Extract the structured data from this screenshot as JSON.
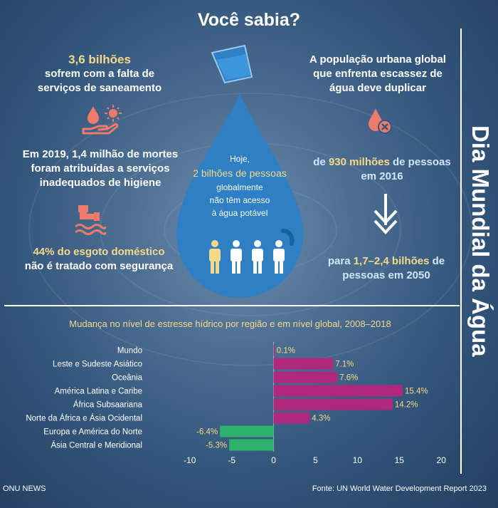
{
  "header": {
    "title": "Você sabia?"
  },
  "side_title": "Dia Mundial da Água",
  "left_facts": {
    "sanitation": {
      "number": "3,6 bilhões",
      "line1": "sofrem com a falta de",
      "line2": "serviços de saneamento"
    },
    "hygiene": {
      "line1": "Em 2019, 1,4 milhão de mortes",
      "line2": "foram atribuídas a serviços",
      "line3": "inadequados de higiene"
    },
    "sewage": {
      "highlight": "44% do esgoto doméstico",
      "line2": "não é tratado com segurança"
    }
  },
  "drop": {
    "line1": "Hoje,",
    "line2": "2 bilhões de pessoas",
    "line3": "globalmente",
    "line4": "não têm acesso",
    "line5": "à água potável"
  },
  "right_facts": {
    "intro": {
      "line1": "A população urbana global",
      "line2": "que enfrenta escassez de",
      "line3": "água deve duplicar"
    },
    "from": {
      "prefix": "de ",
      "number": "930 milhões",
      "suffix": " de pessoas",
      "line2": "em 2016"
    },
    "to": {
      "prefix": "para ",
      "number": "1,7–2,4 bilhões",
      "suffix": " de",
      "line2": "pessoas em 2050"
    }
  },
  "colors": {
    "positive_bar": "#b0287e",
    "negative_bar": "#2db36b",
    "highlight_text": "#f5d98b",
    "drop_fill": "#2f7fc4",
    "icon_coral": "#ef7b6c"
  },
  "chart_data": {
    "type": "bar",
    "orientation": "horizontal",
    "title": "Mudança no nível de estresse hídrico por região e em nível global, 2008–2018",
    "categories": [
      "Mundo",
      "Leste e Sudeste Asiático",
      "Oceânia",
      "América Latina e Caribe",
      "África Subsaariana",
      "Norte da África e Ásia Ocidental",
      "Europa e América do Norte",
      "Ásia Central e Meridional"
    ],
    "values": [
      0.1,
      7.1,
      7.6,
      15.4,
      14.2,
      4.3,
      -6.4,
      -5.3
    ],
    "value_labels": [
      "0.1%",
      "7.1%",
      "7.6%",
      "15.4%",
      "14.2%",
      "4.3%",
      "-6.4%",
      "-5.3%"
    ],
    "xlim": [
      -11,
      21
    ],
    "xticks": [
      -10,
      -5,
      0,
      5,
      10,
      15,
      20
    ],
    "grid": false,
    "legend": "none"
  },
  "footer": {
    "left": "ONU NEWS",
    "right": "Fonte: UN World Water Development Report 2023"
  }
}
